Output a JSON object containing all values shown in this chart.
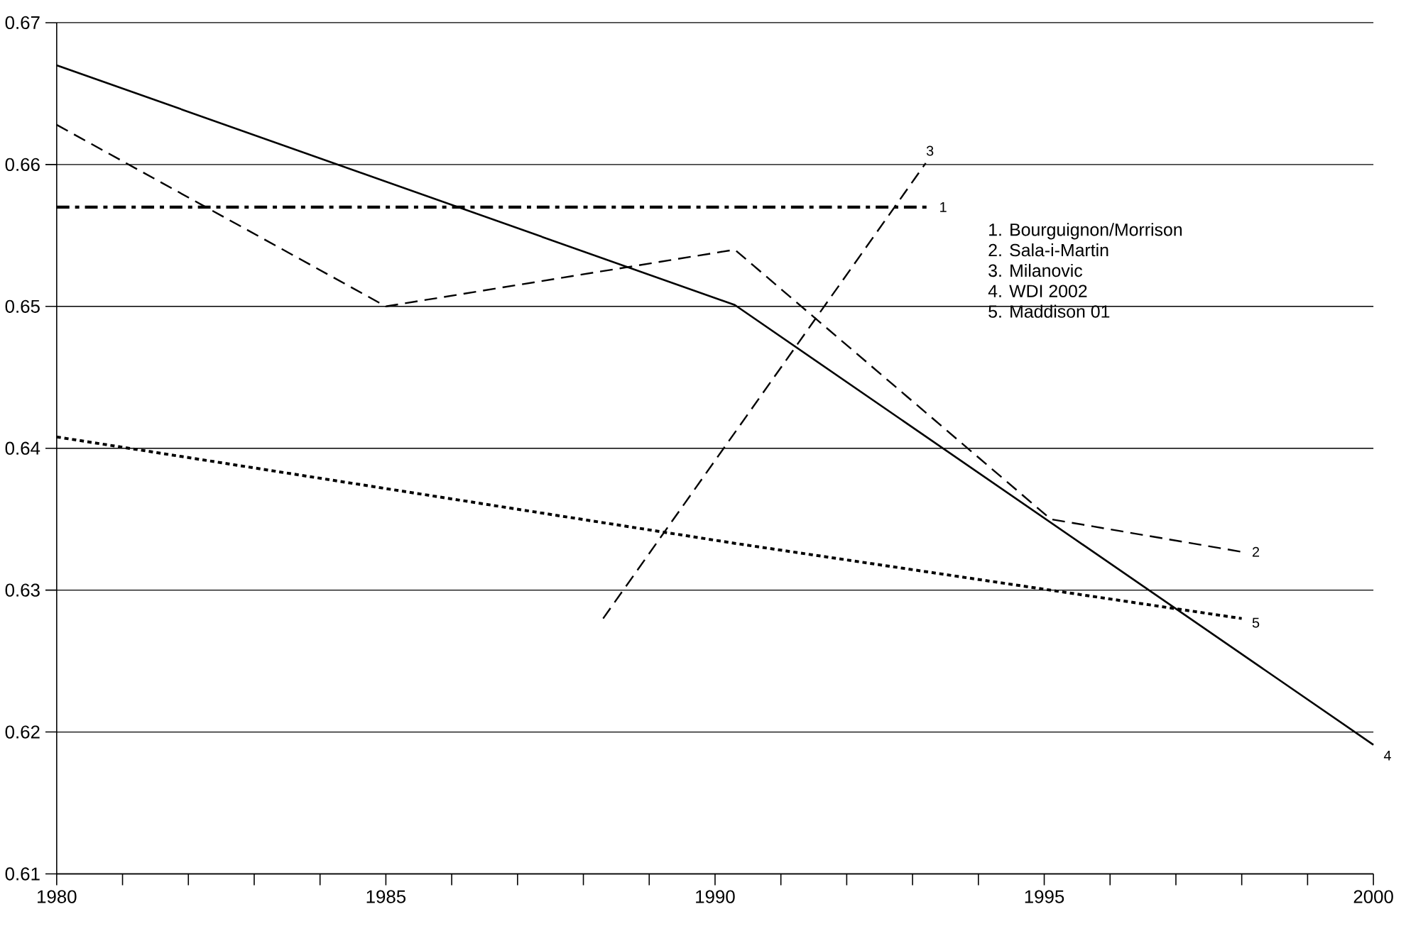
{
  "chart_data": {
    "type": "line",
    "xlim": [
      1980,
      2000
    ],
    "ylim": [
      0.61,
      0.67
    ],
    "xticks": [
      1980,
      {
        "value": 1981,
        "label": null
      },
      {
        "value": 1982,
        "label": null
      },
      {
        "value": 1983,
        "label": null
      },
      {
        "value": 1984,
        "label": null
      },
      1985,
      {
        "value": 1986,
        "label": null
      },
      {
        "value": 1987,
        "label": null
      },
      {
        "value": 1988,
        "label": null
      },
      {
        "value": 1989,
        "label": null
      },
      1990,
      {
        "value": 1991,
        "label": null
      },
      {
        "value": 1992,
        "label": null
      },
      {
        "value": 1993,
        "label": null
      },
      {
        "value": 1994,
        "label": null
      },
      1995,
      {
        "value": 1996,
        "label": null
      },
      {
        "value": 1997,
        "label": null
      },
      {
        "value": 1998,
        "label": null
      },
      {
        "value": 1999,
        "label": null
      },
      2000
    ],
    "yticks": [
      0.61,
      0.62,
      0.63,
      0.64,
      0.65,
      0.66,
      0.67
    ],
    "grid": "y",
    "series": [
      {
        "name": "1",
        "color": "#000000",
        "line_style": "dashdot",
        "x": [
          1980,
          1993.25
        ],
        "values": [
          0.657,
          0.657
        ]
      },
      {
        "name": "2",
        "color": "#000000",
        "line_style": "dashed",
        "x": [
          1980,
          1985,
          1990.3,
          1995.1,
          1998
        ],
        "values": [
          0.6628,
          0.65,
          0.654,
          0.635,
          0.6327
        ]
      },
      {
        "name": "3",
        "color": "#000000",
        "line_style": "dashed",
        "x": [
          1988.3,
          1993.2
        ],
        "values": [
          0.628,
          0.6601
        ]
      },
      {
        "name": "4",
        "color": "#000000",
        "line_style": "solid",
        "x": [
          1980,
          1990.3,
          2000
        ],
        "values": [
          0.667,
          0.6501,
          0.6191
        ]
      },
      {
        "name": "5",
        "color": "#000000",
        "line_style": "dotted",
        "x": [
          1980,
          1990.3,
          1998
        ],
        "values": [
          0.6408,
          0.6333,
          0.628
        ]
      }
    ],
    "annotations": [
      "1. Bourguignon/Morrison",
      "2. Sala-i-Martin",
      "3. Milanovic",
      "4. WDI 2002",
      "5. Maddison 01"
    ]
  }
}
